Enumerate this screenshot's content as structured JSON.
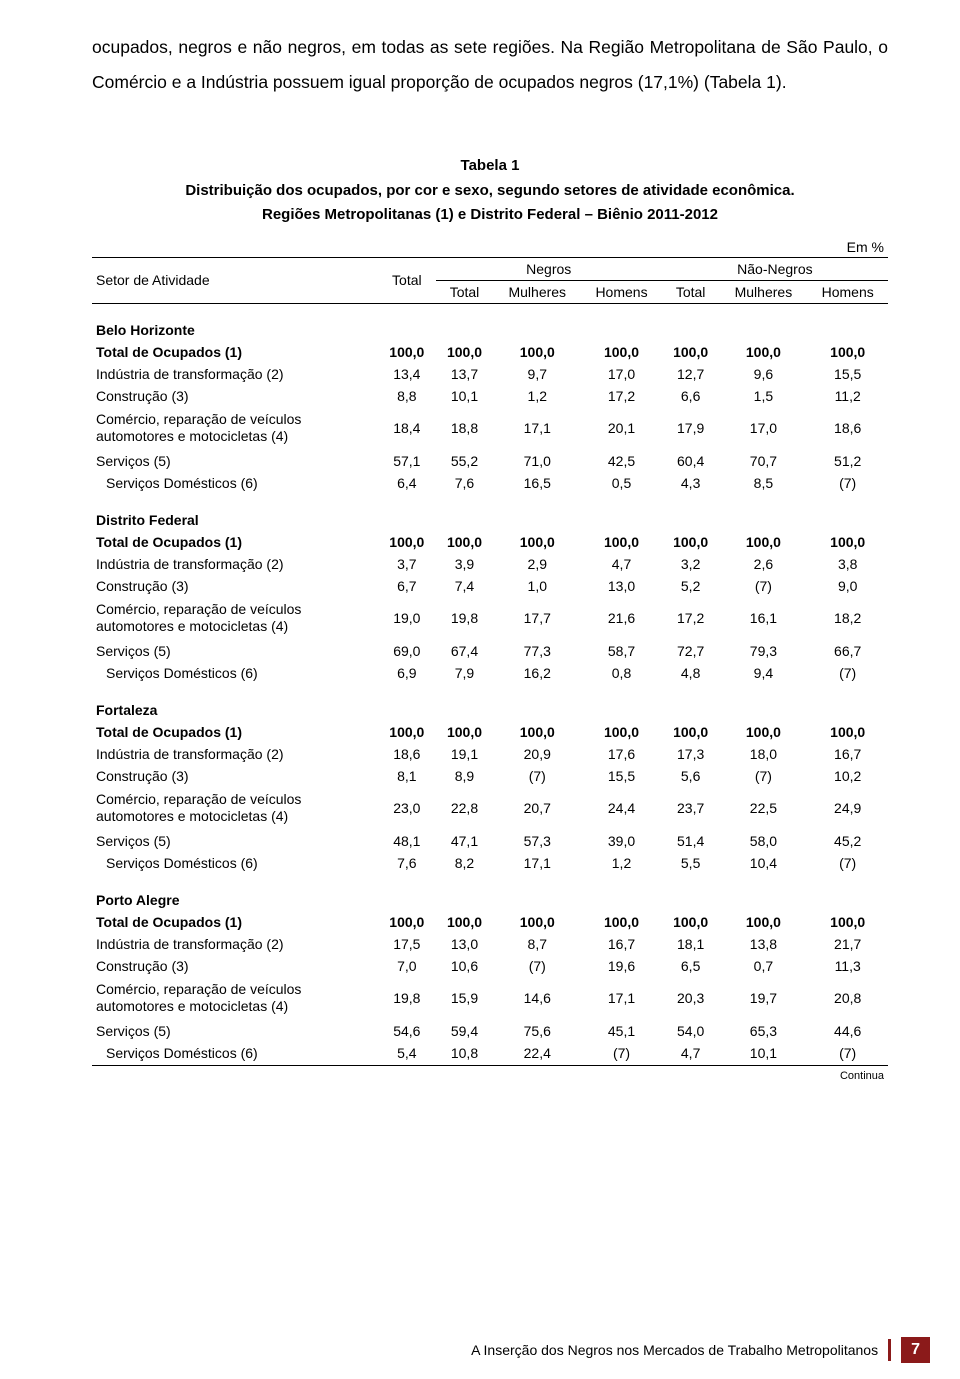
{
  "intro": "ocupados, negros e não negros, em todas as sete regiões. Na Região Metropolitana de São Paulo, o Comércio e a Indústria possuem igual proporção de ocupados negros (17,1%) (Tabela 1).",
  "tableLabel": "Tabela 1",
  "tableTitle": "Distribuição dos ocupados, por cor e sexo, segundo setores de atividade econômica.",
  "tableSubtitle": "Regiões Metropolitanas (1) e Distrito Federal – Biênio 2011-2012",
  "unit": "Em %",
  "header": {
    "setor": "Setor de Atividade",
    "total": "Total",
    "negros": "Negros",
    "naoNegros": "Não-Negros",
    "sub_total": "Total",
    "sub_mulheres": "Mulheres",
    "sub_homens": "Homens"
  },
  "rowLabels": {
    "totalOcupados": "Total de Ocupados (1)",
    "industria": "Indústria de transformação (2)",
    "construcao": "Construção (3)",
    "comercio1": "Comércio, reparação de veículos",
    "comercio2": "automotores e motocicletas (4)",
    "servicos": "Serviços (5)",
    "servicosDom": "Serviços Domésticos (6)"
  },
  "regions": [
    {
      "name": "Belo Horizonte",
      "rows": {
        "total": [
          "100,0",
          "100,0",
          "100,0",
          "100,0",
          "100,0",
          "100,0",
          "100,0"
        ],
        "industria": [
          "13,4",
          "13,7",
          "9,7",
          "17,0",
          "12,7",
          "9,6",
          "15,5"
        ],
        "construcao": [
          "8,8",
          "10,1",
          "1,2",
          "17,2",
          "6,6",
          "1,5",
          "11,2"
        ],
        "comercio": [
          "18,4",
          "18,8",
          "17,1",
          "20,1",
          "17,9",
          "17,0",
          "18,6"
        ],
        "servicos": [
          "57,1",
          "55,2",
          "71,0",
          "42,5",
          "60,4",
          "70,7",
          "51,2"
        ],
        "domestico": [
          "6,4",
          "7,6",
          "16,5",
          "0,5",
          "4,3",
          "8,5",
          "(7)"
        ]
      }
    },
    {
      "name": "Distrito Federal",
      "rows": {
        "total": [
          "100,0",
          "100,0",
          "100,0",
          "100,0",
          "100,0",
          "100,0",
          "100,0"
        ],
        "industria": [
          "3,7",
          "3,9",
          "2,9",
          "4,7",
          "3,2",
          "2,6",
          "3,8"
        ],
        "construcao": [
          "6,7",
          "7,4",
          "1,0",
          "13,0",
          "5,2",
          "(7)",
          "9,0"
        ],
        "comercio": [
          "19,0",
          "19,8",
          "17,7",
          "21,6",
          "17,2",
          "16,1",
          "18,2"
        ],
        "servicos": [
          "69,0",
          "67,4",
          "77,3",
          "58,7",
          "72,7",
          "79,3",
          "66,7"
        ],
        "domestico": [
          "6,9",
          "7,9",
          "16,2",
          "0,8",
          "4,8",
          "9,4",
          "(7)"
        ]
      }
    },
    {
      "name": "Fortaleza",
      "rows": {
        "total": [
          "100,0",
          "100,0",
          "100,0",
          "100,0",
          "100,0",
          "100,0",
          "100,0"
        ],
        "industria": [
          "18,6",
          "19,1",
          "20,9",
          "17,6",
          "17,3",
          "18,0",
          "16,7"
        ],
        "construcao": [
          "8,1",
          "8,9",
          "(7)",
          "15,5",
          "5,6",
          "(7)",
          "10,2"
        ],
        "comercio": [
          "23,0",
          "22,8",
          "20,7",
          "24,4",
          "23,7",
          "22,5",
          "24,9"
        ],
        "servicos": [
          "48,1",
          "47,1",
          "57,3",
          "39,0",
          "51,4",
          "58,0",
          "45,2"
        ],
        "domestico": [
          "7,6",
          "8,2",
          "17,1",
          "1,2",
          "5,5",
          "10,4",
          "(7)"
        ]
      }
    },
    {
      "name": "Porto Alegre",
      "rows": {
        "total": [
          "100,0",
          "100,0",
          "100,0",
          "100,0",
          "100,0",
          "100,0",
          "100,0"
        ],
        "industria": [
          "17,5",
          "13,0",
          "8,7",
          "16,7",
          "18,1",
          "13,8",
          "21,7"
        ],
        "construcao": [
          "7,0",
          "10,6",
          "(7)",
          "19,6",
          "6,5",
          "0,7",
          "11,3"
        ],
        "comercio": [
          "19,8",
          "15,9",
          "14,6",
          "17,1",
          "20,3",
          "19,7",
          "20,8"
        ],
        "servicos": [
          "54,6",
          "59,4",
          "75,6",
          "45,1",
          "54,0",
          "65,3",
          "44,6"
        ],
        "domestico": [
          "5,4",
          "10,8",
          "22,4",
          "(7)",
          "4,7",
          "10,1",
          "(7)"
        ]
      }
    }
  ],
  "continua": "Continua",
  "footer": {
    "text": "A Inserção dos Negros nos Mercados de Trabalho Metropolitanos",
    "page": "7"
  },
  "colors": {
    "accent": "#8b1a1a",
    "text": "#000000",
    "bg": "#ffffff"
  }
}
